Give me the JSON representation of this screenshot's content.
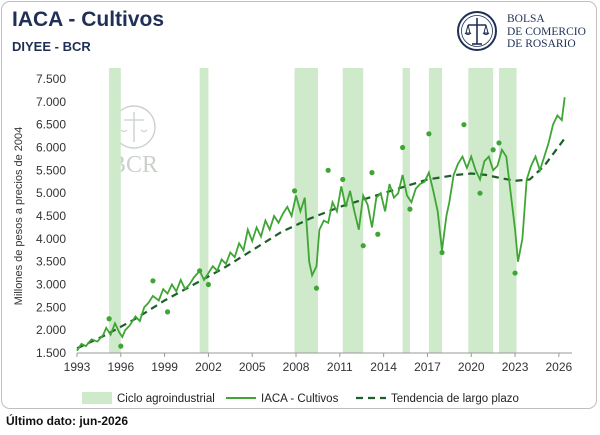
{
  "header": {
    "title": "IACA - Cultivos",
    "subtitle": "DIYEE - BCR",
    "logo_lines": [
      "BOLSA",
      "DE COMERCIO",
      "DE ROSARIO"
    ],
    "watermark": "BCR"
  },
  "footer": {
    "last_data": "Último dato: jun-2026"
  },
  "colors": {
    "series": "#3fa535",
    "trend": "#1f5e2a",
    "band": "#cfe9cb",
    "navy": "#1f2f55"
  },
  "chart_data": {
    "type": "line",
    "title": "IACA - Cultivos",
    "ylabel": "Millones de pesos a precios de 2004",
    "xlim": [
      1993.0,
      2026.9
    ],
    "ylim": [
      1500,
      7500
    ],
    "yticks": [
      1500,
      2000,
      2500,
      3000,
      3500,
      4000,
      4500,
      5000,
      5500,
      6000,
      6500,
      7000,
      7500
    ],
    "ytick_labels": [
      "1.500",
      "2.000",
      "2.500",
      "3.000",
      "3.500",
      "4.000",
      "4.500",
      "5.000",
      "5.500",
      "6.000",
      "6.500",
      "7.000",
      "7.500"
    ],
    "xticks": [
      1993,
      1996,
      1999,
      2002,
      2005,
      2008,
      2011,
      2014,
      2017,
      2020,
      2023,
      2026
    ],
    "legend": [
      "Ciclo agroindustrial",
      "IACA - Cultivos",
      "Tendencia de largo plazo"
    ],
    "legend_position": "bottom",
    "cycles": [
      [
        1995.2,
        1996.0
      ],
      [
        2001.4,
        2002.0
      ],
      [
        2007.9,
        2009.5
      ],
      [
        2011.2,
        2012.6
      ],
      [
        2015.3,
        2015.8
      ],
      [
        2017.1,
        2018.0
      ],
      [
        2019.8,
        2021.5
      ],
      [
        2021.9,
        2023.1
      ]
    ],
    "series": [
      {
        "name": "IACA - Cultivos",
        "x": [
          1993.0,
          1993.3,
          1993.6,
          1994.0,
          1994.4,
          1994.8,
          1995.0,
          1995.3,
          1995.6,
          1995.9,
          1996.1,
          1996.3,
          1996.6,
          1997.0,
          1997.3,
          1997.6,
          1997.9,
          1998.2,
          1998.6,
          1998.9,
          1999.2,
          1999.5,
          1999.8,
          2000.1,
          2000.4,
          2000.7,
          2001.0,
          2001.4,
          2001.7,
          2002.0,
          2002.3,
          2002.6,
          2002.9,
          2003.2,
          2003.5,
          2003.8,
          2004.1,
          2004.4,
          2004.7,
          2005.0,
          2005.3,
          2005.6,
          2005.9,
          2006.2,
          2006.5,
          2006.8,
          2007.1,
          2007.4,
          2007.7,
          2008.0,
          2008.3,
          2008.6,
          2008.9,
          2009.1,
          2009.4,
          2009.6,
          2009.9,
          2010.2,
          2010.5,
          2010.8,
          2011.1,
          2011.4,
          2011.7,
          2012.0,
          2012.3,
          2012.6,
          2012.9,
          2013.2,
          2013.5,
          2013.8,
          2014.1,
          2014.4,
          2014.7,
          2015.0,
          2015.3,
          2015.6,
          2015.9,
          2016.2,
          2016.5,
          2016.8,
          2017.1,
          2017.4,
          2017.7,
          2018.0,
          2018.3,
          2018.5,
          2018.8,
          2019.1,
          2019.4,
          2019.7,
          2020.0,
          2020.3,
          2020.6,
          2020.9,
          2021.2,
          2021.5,
          2021.8,
          2022.1,
          2022.4,
          2022.7,
          2023.0,
          2023.2,
          2023.5,
          2023.8,
          2024.1,
          2024.4,
          2024.7,
          2025.0,
          2025.3,
          2025.6,
          2025.9,
          2026.2,
          2026.4
        ],
        "y": [
          1550,
          1700,
          1650,
          1800,
          1750,
          1900,
          2050,
          1900,
          2150,
          1950,
          1850,
          2000,
          2100,
          2300,
          2200,
          2500,
          2600,
          2750,
          2650,
          2900,
          2800,
          3000,
          2850,
          3100,
          2900,
          3000,
          3150,
          3300,
          3100,
          3250,
          3400,
          3300,
          3550,
          3450,
          3700,
          3600,
          3900,
          3750,
          4200,
          3950,
          4250,
          4050,
          4400,
          4200,
          4500,
          4350,
          4550,
          4700,
          4500,
          4950,
          4600,
          4900,
          3500,
          3200,
          3400,
          4200,
          4400,
          4350,
          4800,
          4600,
          5150,
          4700,
          5050,
          4600,
          4200,
          4950,
          4750,
          4250,
          4900,
          5000,
          4600,
          5200,
          4900,
          5000,
          5400,
          4950,
          4800,
          5100,
          5200,
          5250,
          5450,
          5050,
          4600,
          3750,
          4500,
          4800,
          5400,
          5650,
          5800,
          5550,
          5800,
          5500,
          5300,
          5700,
          5800,
          5500,
          5600,
          5950,
          5800,
          5000,
          4200,
          3500,
          4000,
          5300,
          5600,
          5800,
          5500,
          5800,
          6100,
          6500,
          6700,
          6600,
          7100
        ]
      },
      {
        "name": "Tendencia de largo plazo",
        "x": [
          1993,
          1995,
          1997,
          1999,
          2001,
          2003,
          2005,
          2007,
          2009,
          2011,
          2013,
          2015,
          2017,
          2019,
          2020,
          2021,
          2022,
          2023,
          2024,
          2025,
          2026.4
        ],
        "y": [
          1600,
          1900,
          2250,
          2650,
          3000,
          3350,
          3750,
          4150,
          4450,
          4700,
          4900,
          5100,
          5300,
          5400,
          5430,
          5400,
          5330,
          5270,
          5300,
          5600,
          6200
        ]
      }
    ],
    "markers": {
      "x": [
        1995.2,
        1996.0,
        1998.2,
        1999.2,
        2001.4,
        2002.0,
        2007.9,
        2009.4,
        2010.2,
        2011.2,
        2012.6,
        2013.2,
        2013.6,
        2015.3,
        2015.8,
        2017.1,
        2018.0,
        2019.5,
        2020.6,
        2021.5,
        2021.9,
        2023.0
      ],
      "y": [
        2250,
        1650,
        3080,
        2400,
        3300,
        3000,
        5050,
        2920,
        5500,
        5300,
        3850,
        5450,
        4100,
        6000,
        4650,
        6300,
        3700,
        6500,
        5000,
        5950,
        6100,
        3250
      ]
    }
  }
}
